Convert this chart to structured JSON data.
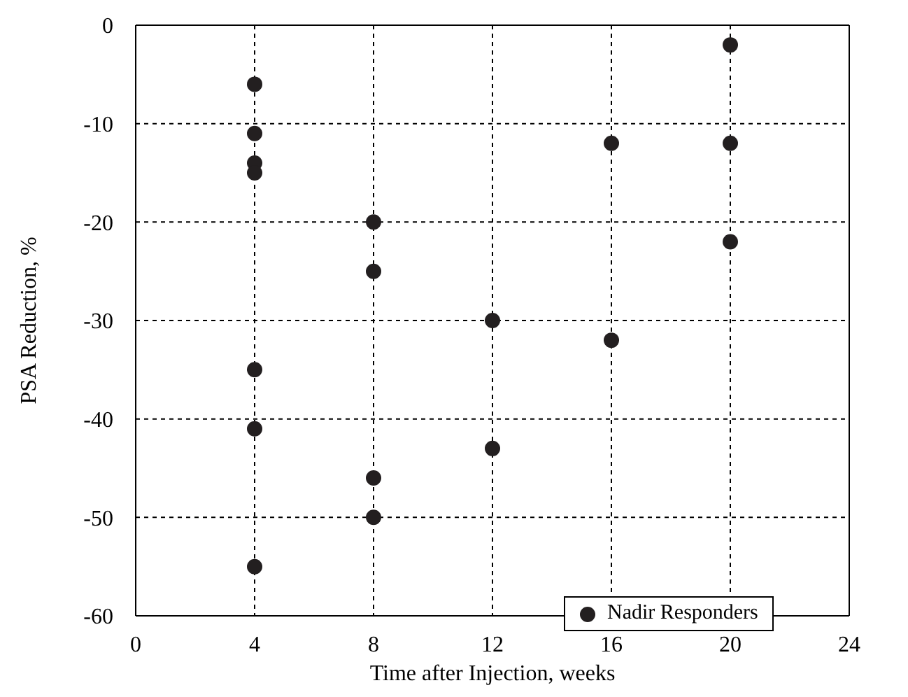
{
  "chart_data": {
    "type": "scatter",
    "xlabel": "Time after Injection, weeks",
    "ylabel": "PSA Reduction, %",
    "x": [
      4,
      4,
      4,
      4,
      4,
      4,
      4,
      8,
      8,
      8,
      8,
      12,
      12,
      16,
      16,
      20,
      20,
      20
    ],
    "series": [
      {
        "name": "Nadir Responders",
        "color": "#231f20",
        "values": [
          -6,
          -11,
          -14,
          -15,
          -35,
          -41,
          -55,
          -20,
          -25,
          -46,
          -50,
          -30,
          -43,
          -12,
          -32,
          -2,
          -12,
          -22
        ]
      }
    ],
    "xlim": [
      0,
      24
    ],
    "xticks": [
      0,
      4,
      8,
      12,
      16,
      20,
      24
    ],
    "ylim": [
      -60,
      0
    ],
    "yticks": [
      -60,
      -50,
      -40,
      -30,
      -20,
      -10,
      0
    ],
    "grid": true,
    "legend": "bottom right",
    "marker": "circle"
  }
}
